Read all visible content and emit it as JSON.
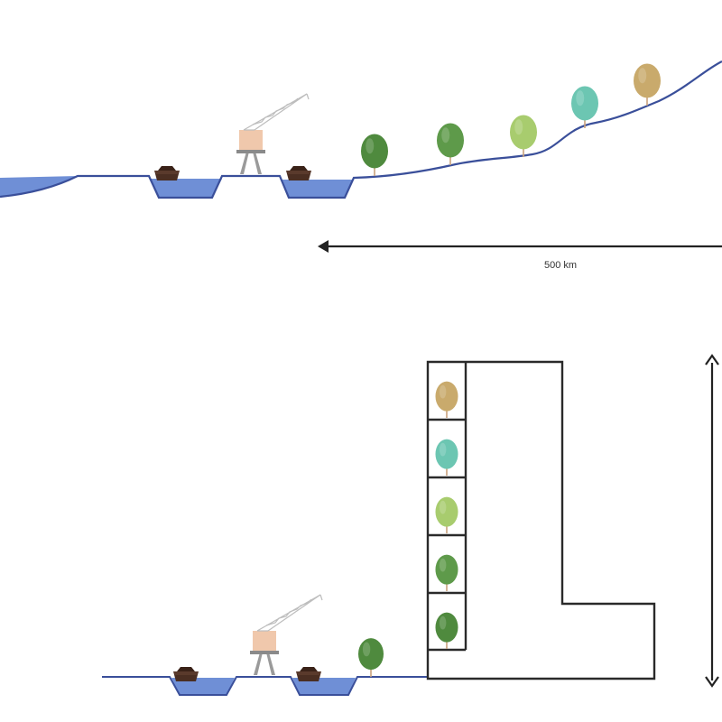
{
  "distance_label": "500 km",
  "colors": {
    "water": "#6f8fd6",
    "water_outline": "#3a4f9a",
    "ground_line": "#3a4f9a",
    "building_outline": "#2a2a2a",
    "arrow": "#222222",
    "boat_hull": "#4a2e22",
    "crane_body": "#f0c8ac",
    "crane_legs": "#9a9a9a",
    "crane_lattice": "#bdbdbd",
    "trunk": "#c9a27c"
  },
  "tree_colors": [
    "#4f8a3e",
    "#5e9a4a",
    "#a8cc6e",
    "#6cc6b2",
    "#c9aa6c"
  ],
  "tower_tree_colors": [
    "#c9aa6c",
    "#6cc6b2",
    "#a8cc6e",
    "#5e9a4a",
    "#4f8a3e"
  ]
}
